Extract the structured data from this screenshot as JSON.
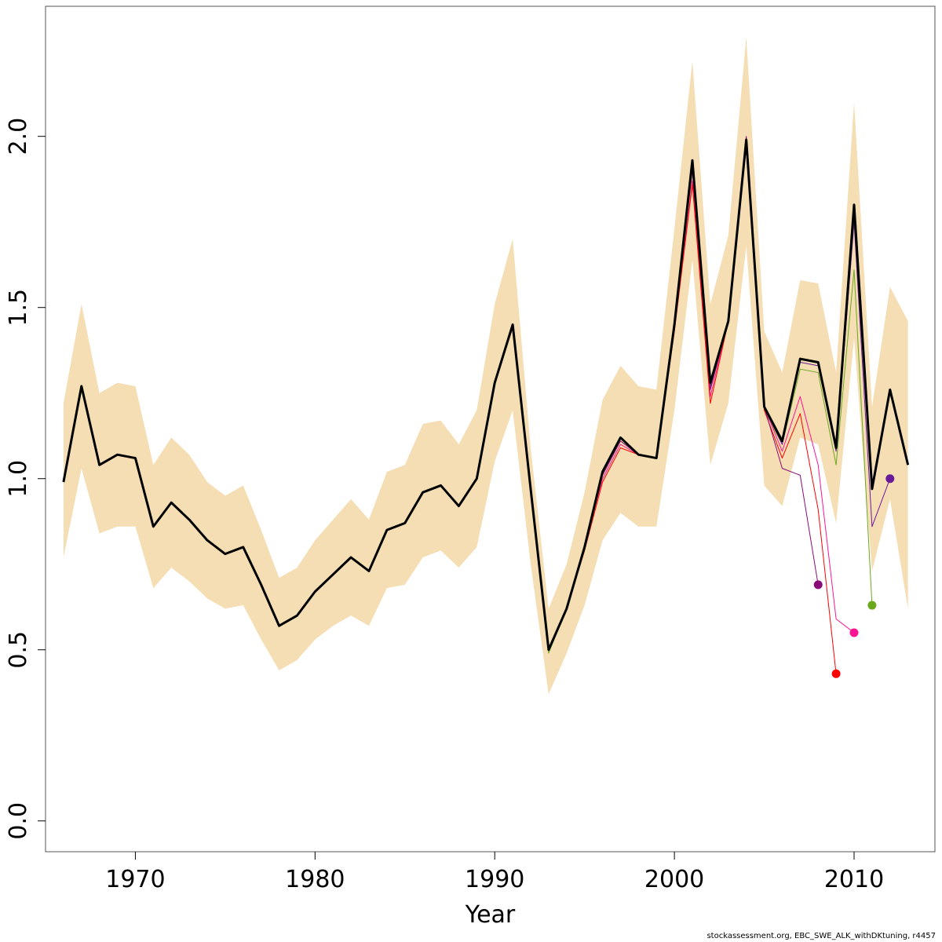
{
  "chart_data": {
    "type": "line",
    "title": "",
    "xlabel": "Year",
    "ylabel": "",
    "xlim": [
      1965,
      2014.5
    ],
    "ylim": [
      -0.09,
      2.38
    ],
    "x_ticks": [
      1970,
      1980,
      1990,
      2000,
      2010
    ],
    "y_ticks": [
      0.0,
      0.5,
      1.0,
      1.5,
      2.0
    ],
    "y_tick_labels": [
      "0.0",
      "0.5",
      "1.0",
      "1.5",
      "2.0"
    ],
    "grid": false,
    "legend": "none",
    "band": {
      "color": "#f5deb3",
      "x": [
        1966,
        1967,
        1968,
        1969,
        1970,
        1971,
        1972,
        1973,
        1974,
        1975,
        1976,
        1977,
        1978,
        1979,
        1980,
        1981,
        1982,
        1983,
        1984,
        1985,
        1986,
        1987,
        1988,
        1989,
        1990,
        1991,
        1992,
        1993,
        1994,
        1995,
        1996,
        1997,
        1998,
        1999,
        2000,
        2001,
        2002,
        2003,
        2004,
        2005,
        2006,
        2007,
        2008,
        2009,
        2010,
        2011,
        2012,
        2013
      ],
      "upper": [
        1.22,
        1.51,
        1.25,
        1.28,
        1.27,
        1.04,
        1.12,
        1.07,
        0.99,
        0.95,
        0.98,
        0.85,
        0.71,
        0.74,
        0.82,
        0.88,
        0.94,
        0.88,
        1.02,
        1.04,
        1.16,
        1.17,
        1.1,
        1.2,
        1.51,
        1.7,
        1.09,
        0.62,
        0.75,
        0.96,
        1.23,
        1.33,
        1.27,
        1.26,
        1.73,
        2.22,
        1.51,
        1.71,
        2.29,
        1.43,
        1.31,
        1.58,
        1.57,
        1.31,
        2.1,
        1.21,
        1.56,
        1.46
      ],
      "lower": [
        0.77,
        1.03,
        0.84,
        0.86,
        0.86,
        0.68,
        0.74,
        0.7,
        0.65,
        0.62,
        0.63,
        0.53,
        0.44,
        0.47,
        0.53,
        0.57,
        0.6,
        0.57,
        0.68,
        0.69,
        0.77,
        0.79,
        0.74,
        0.8,
        1.05,
        1.2,
        0.75,
        0.37,
        0.49,
        0.63,
        0.82,
        0.9,
        0.86,
        0.86,
        1.2,
        1.64,
        1.04,
        1.22,
        1.68,
        0.98,
        0.92,
        1.12,
        1.1,
        0.87,
        1.41,
        0.73,
        0.94,
        0.62
      ]
    },
    "series": [
      {
        "color": "#000000",
        "width": 3,
        "x": [
          1966,
          1967,
          1968,
          1969,
          1970,
          1971,
          1972,
          1973,
          1974,
          1975,
          1976,
          1977,
          1978,
          1979,
          1980,
          1981,
          1982,
          1983,
          1984,
          1985,
          1986,
          1987,
          1988,
          1989,
          1990,
          1991,
          1992,
          1993,
          1994,
          1995,
          1996,
          1997,
          1998,
          1999,
          2000,
          2001,
          2002,
          2003,
          2004,
          2005,
          2006,
          2007,
          2008,
          2009,
          2010,
          2011,
          2012,
          2013
        ],
        "values": [
          0.99,
          1.27,
          1.04,
          1.07,
          1.06,
          0.86,
          0.93,
          0.88,
          0.82,
          0.78,
          0.8,
          0.69,
          0.57,
          0.6,
          0.67,
          0.72,
          0.77,
          0.73,
          0.85,
          0.87,
          0.96,
          0.98,
          0.92,
          1.0,
          1.28,
          1.45,
          0.97,
          0.5,
          0.62,
          0.8,
          1.02,
          1.12,
          1.07,
          1.06,
          1.45,
          1.93,
          1.28,
          1.46,
          1.99,
          1.21,
          1.11,
          1.35,
          1.34,
          1.09,
          1.8,
          0.97,
          1.26,
          1.04
        ]
      },
      {
        "color": "#6aa81e",
        "width": 1,
        "end_marker": true,
        "x": [
          1966,
          1967,
          1968,
          1969,
          1970,
          1971,
          1972,
          1973,
          1974,
          1975,
          1976,
          1977,
          1978,
          1979,
          1980,
          1981,
          1982,
          1983,
          1984,
          1985,
          1986,
          1987,
          1988,
          1989,
          1990,
          1991,
          1992,
          1993,
          1994,
          1995,
          1996,
          1997,
          1998,
          1999,
          2000,
          2001,
          2002,
          2003,
          2004,
          2005,
          2006,
          2007,
          2008,
          2009,
          2010,
          2011
        ],
        "values": [
          0.99,
          1.27,
          1.04,
          1.07,
          1.06,
          0.86,
          0.93,
          0.88,
          0.82,
          0.78,
          0.8,
          0.69,
          0.57,
          0.6,
          0.67,
          0.72,
          0.77,
          0.73,
          0.85,
          0.87,
          0.96,
          0.98,
          0.92,
          1.0,
          1.28,
          1.45,
          0.97,
          0.49,
          0.62,
          0.79,
          1.02,
          1.11,
          1.07,
          1.06,
          1.44,
          1.9,
          1.26,
          1.46,
          1.99,
          1.2,
          1.1,
          1.32,
          1.31,
          1.04,
          1.61,
          0.63
        ]
      },
      {
        "color": "#ff1493",
        "width": 1,
        "end_marker": true,
        "x": [
          1966,
          1967,
          1968,
          1969,
          1970,
          1971,
          1972,
          1973,
          1974,
          1975,
          1976,
          1977,
          1978,
          1979,
          1980,
          1981,
          1982,
          1983,
          1984,
          1985,
          1986,
          1987,
          1988,
          1989,
          1990,
          1991,
          1992,
          1993,
          1994,
          1995,
          1996,
          1997,
          1998,
          1999,
          2000,
          2001,
          2002,
          2003,
          2004,
          2005,
          2006,
          2007,
          2008,
          2009,
          2010
        ],
        "values": [
          0.99,
          1.27,
          1.04,
          1.07,
          1.06,
          0.86,
          0.93,
          0.88,
          0.82,
          0.78,
          0.8,
          0.69,
          0.57,
          0.6,
          0.67,
          0.72,
          0.77,
          0.73,
          0.85,
          0.87,
          0.96,
          0.98,
          0.92,
          1.0,
          1.28,
          1.45,
          0.97,
          0.5,
          0.62,
          0.8,
          1.0,
          1.1,
          1.07,
          1.06,
          1.44,
          1.87,
          1.24,
          1.46,
          1.99,
          1.21,
          1.08,
          1.24,
          1.04,
          0.59,
          0.55
        ]
      },
      {
        "color": "#ff0000",
        "width": 1,
        "end_marker": true,
        "x": [
          1966,
          1967,
          1968,
          1969,
          1970,
          1971,
          1972,
          1973,
          1974,
          1975,
          1976,
          1977,
          1978,
          1979,
          1980,
          1981,
          1982,
          1983,
          1984,
          1985,
          1986,
          1987,
          1988,
          1989,
          1990,
          1991,
          1992,
          1993,
          1994,
          1995,
          1996,
          1997,
          1998,
          1999,
          2000,
          2001,
          2002,
          2003,
          2004,
          2005,
          2006,
          2007,
          2008,
          2009
        ],
        "values": [
          0.99,
          1.27,
          1.04,
          1.07,
          1.06,
          0.86,
          0.93,
          0.88,
          0.82,
          0.78,
          0.8,
          0.69,
          0.57,
          0.6,
          0.67,
          0.72,
          0.77,
          0.73,
          0.85,
          0.87,
          0.96,
          0.98,
          0.92,
          1.0,
          1.28,
          1.44,
          0.97,
          0.5,
          0.62,
          0.79,
          0.99,
          1.09,
          1.07,
          1.06,
          1.43,
          1.86,
          1.22,
          1.46,
          1.98,
          1.2,
          1.06,
          1.19,
          0.91,
          0.43
        ]
      },
      {
        "color": "#8b0a7a",
        "width": 1,
        "end_marker": true,
        "x": [
          1966,
          1967,
          1968,
          1969,
          1970,
          1971,
          1972,
          1973,
          1974,
          1975,
          1976,
          1977,
          1978,
          1979,
          1980,
          1981,
          1982,
          1983,
          1984,
          1985,
          1986,
          1987,
          1988,
          1989,
          1990,
          1991,
          1992,
          1993,
          1994,
          1995,
          1996,
          1997,
          1998,
          1999,
          2000,
          2001,
          2002,
          2003,
          2004,
          2005,
          2006,
          2007,
          2008
        ],
        "values": [
          0.99,
          1.27,
          1.04,
          1.07,
          1.06,
          0.86,
          0.93,
          0.88,
          0.82,
          0.78,
          0.8,
          0.69,
          0.57,
          0.6,
          0.67,
          0.72,
          0.77,
          0.73,
          0.85,
          0.87,
          0.96,
          0.98,
          0.92,
          1.0,
          1.28,
          1.45,
          0.97,
          0.5,
          0.62,
          0.8,
          1.01,
          1.11,
          1.07,
          1.06,
          1.45,
          1.9,
          1.26,
          1.46,
          2.0,
          1.21,
          1.03,
          1.01,
          0.69
        ]
      },
      {
        "color": "#6a1b9a",
        "width": 1,
        "end_marker": true,
        "x": [
          1966,
          1967,
          1968,
          1969,
          1970,
          1971,
          1972,
          1973,
          1974,
          1975,
          1976,
          1977,
          1978,
          1979,
          1980,
          1981,
          1982,
          1983,
          1984,
          1985,
          1986,
          1987,
          1988,
          1989,
          1990,
          1991,
          1992,
          1993,
          1994,
          1995,
          1996,
          1997,
          1998,
          1999,
          2000,
          2001,
          2002,
          2003,
          2004,
          2005,
          2006,
          2007,
          2008,
          2009,
          2010,
          2011,
          2012
        ],
        "values": [
          0.99,
          1.27,
          1.04,
          1.07,
          1.06,
          0.86,
          0.93,
          0.88,
          0.82,
          0.78,
          0.8,
          0.69,
          0.57,
          0.6,
          0.67,
          0.72,
          0.77,
          0.73,
          0.85,
          0.87,
          0.96,
          0.98,
          0.92,
          1.0,
          1.28,
          1.45,
          0.97,
          0.5,
          0.62,
          0.8,
          1.02,
          1.12,
          1.07,
          1.06,
          1.45,
          1.92,
          1.27,
          1.46,
          1.99,
          1.21,
          1.1,
          1.34,
          1.33,
          1.08,
          1.75,
          0.86,
          1.0
        ]
      }
    ]
  },
  "footer": {
    "note": "stockassessment.org, EBC_SWE_ALK_withDKtuning, r4457"
  }
}
